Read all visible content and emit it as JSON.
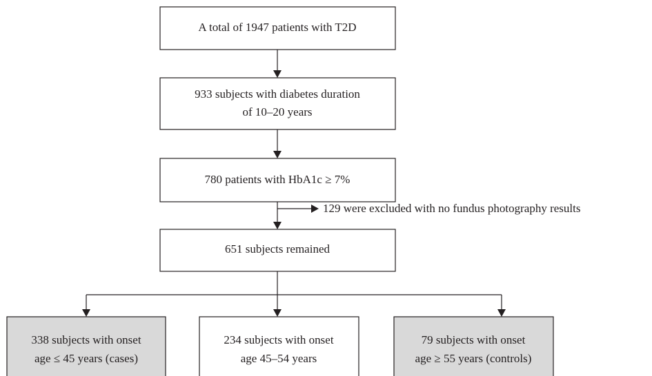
{
  "nodes": [
    {
      "lines": [
        "A total of 1947 patients with T2D"
      ]
    },
    {
      "lines": [
        "933 subjects with diabetes duration",
        "of 10–20 years"
      ]
    },
    {
      "lines": [
        "780 patients with HbA1c ≥ 7%"
      ]
    },
    {
      "lines": [
        "651 subjects remained"
      ]
    },
    {
      "lines": [
        "338 subjects with onset",
        "age ≤ 45 years (cases)"
      ]
    },
    {
      "lines": [
        "234 subjects with onset",
        "age 45–54 years"
      ]
    },
    {
      "lines": [
        "79 subjects with onset",
        "age ≥ 55 years (controls)"
      ]
    }
  ],
  "exclusion": {
    "label": "129 were excluded with no fundus photography results"
  }
}
